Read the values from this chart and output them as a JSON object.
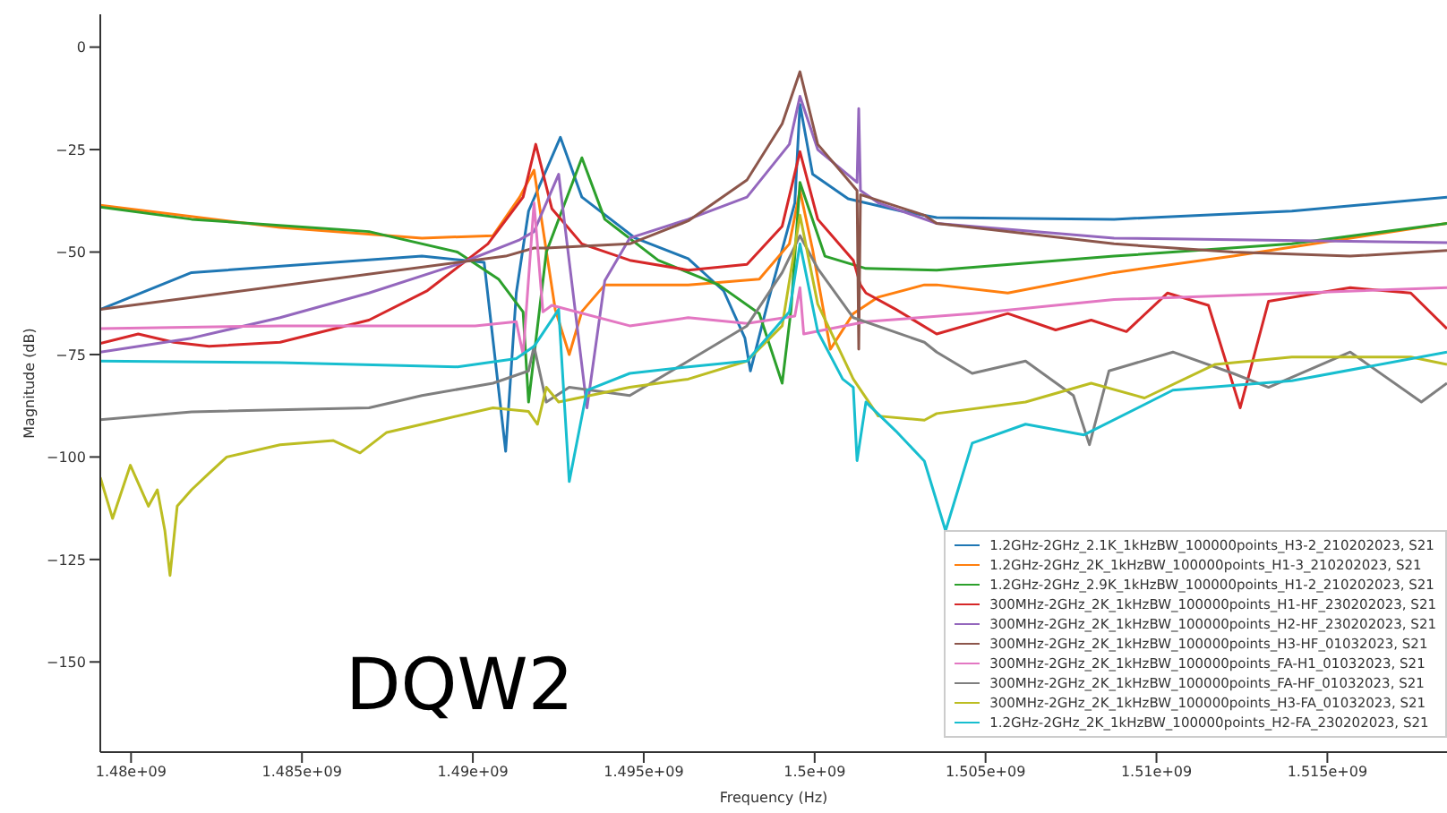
{
  "chart_data": {
    "type": "line",
    "xlabel": "Frequency (Hz)",
    "ylabel": "Magnitude (dB)",
    "annotations": [
      "DQW2"
    ],
    "xlim": [
      1479100000.0,
      1518500000.0
    ],
    "ylim": [
      -172,
      8
    ],
    "xticks": [
      {
        "value": 1480000000.0,
        "label": "1.48e+09"
      },
      {
        "value": 1485000000.0,
        "label": "1.485e+09"
      },
      {
        "value": 1490000000.0,
        "label": "1.49e+09"
      },
      {
        "value": 1495000000.0,
        "label": "1.495e+09"
      },
      {
        "value": 1500000000.0,
        "label": "1.5e+09"
      },
      {
        "value": 1505000000.0,
        "label": "1.505e+09"
      },
      {
        "value": 1510000000.0,
        "label": "1.51e+09"
      },
      {
        "value": 1515000000.0,
        "label": "1.515e+09"
      }
    ],
    "yticks": [
      0,
      {
        "value": -25,
        "label": "−25"
      },
      {
        "value": -50,
        "label": "−50"
      },
      {
        "value": -75,
        "label": "−75"
      },
      {
        "value": -100,
        "label": "−100"
      },
      {
        "value": -125,
        "label": "−125"
      },
      {
        "value": -150,
        "label": "−150"
      }
    ],
    "grid": false,
    "legend": "bottom right",
    "line_style": "solid",
    "series": [
      {
        "name": "1.2GHz-2GHz_2.1K_1kHzBW_100000points_H3-2_210202023, S21",
        "color": "#1f77b4",
        "x": [
          1479100000.0,
          1481770000.0,
          1488510000.0,
          1490330000.0,
          1490960000.0,
          1491270000.0,
          1491630000.0,
          1492560000.0,
          1493190000.0,
          1494750000.0,
          1496300000.0,
          1497340000.0,
          1497960000.0,
          1498120000.0,
          1498640000.0,
          1499420000.0,
          1499570000.0,
          1499940000.0,
          1500980000.0,
          1502530000.0,
          1503570000.0,
          1508760000.0,
          1513960000.0,
          1518500000.0
        ],
        "values": [
          -64,
          -55,
          -51,
          -52.5,
          -98.6,
          -60,
          -40,
          -22,
          -36.6,
          -46.6,
          -51.6,
          -59.5,
          -71,
          -79,
          -62,
          -38,
          -14,
          -31,
          -37,
          -40,
          -41.6,
          -42,
          -40,
          -36.6
        ]
      },
      {
        "name": "1.2GHz-2GHz_2K_1kHzBW_100000points_H1-3_210202023, S21",
        "color": "#ff7f0e",
        "x": [
          1479100000.0,
          1484360000.0,
          1488510000.0,
          1490590000.0,
          1491370000.0,
          1491790000.0,
          1492410000.0,
          1492820000.0,
          1493190000.0,
          1493860000.0,
          1496300000.0,
          1498380000.0,
          1499260000.0,
          1499570000.0,
          1499940000.0,
          1500460000.0,
          1501130000.0,
          1501860000.0,
          1503210000.0,
          1503570000.0,
          1505650000.0,
          1508760000.0,
          1512240000.0,
          1518500000.0
        ],
        "values": [
          -38.6,
          -44,
          -46.6,
          -46,
          -36.6,
          -30,
          -64,
          -75,
          -64.5,
          -58,
          -58,
          -56.6,
          -48,
          -35,
          -49.4,
          -73.7,
          -65,
          -61,
          -58,
          -58,
          -60,
          -55,
          -51,
          -43
        ]
      },
      {
        "name": "1.2GHz-2GHz_2.9K_1kHzBW_100000points_H1-2_210202023, S21",
        "color": "#2ca02c",
        "x": [
          1479100000.0,
          1481770000.0,
          1486960000.0,
          1489550000.0,
          1490750000.0,
          1491470000.0,
          1491630000.0,
          1492150000.0,
          1493190000.0,
          1493860000.0,
          1495420000.0,
          1497190000.0,
          1498380000.0,
          1499050000.0,
          1499310000.0,
          1499570000.0,
          1500300000.0,
          1501500000.0,
          1503570000.0,
          1508760000.0,
          1513960000.0,
          1518500000.0
        ],
        "values": [
          -39,
          -42,
          -45,
          -50,
          -56.6,
          -64.6,
          -86.6,
          -50,
          -27,
          -42,
          -52,
          -58,
          -65,
          -82,
          -64,
          -33,
          -51,
          -54,
          -54.4,
          -51,
          -48,
          -43
        ]
      },
      {
        "name": "300MHz-2GHz_2K_1kHzBW_100000points_H1-HF_230202023, S21",
        "color": "#d62728",
        "x": [
          1479100000.0,
          1480210000.0,
          1481250000.0,
          1482280000.0,
          1484360000.0,
          1486960000.0,
          1488670000.0,
          1490440000.0,
          1491470000.0,
          1491840000.0,
          1492310000.0,
          1493190000.0,
          1494590000.0,
          1496300000.0,
          1498020000.0,
          1499050000.0,
          1499570000.0,
          1500090000.0,
          1501130000.0,
          1501340000.0,
          1501500000.0,
          1502380000.0,
          1503570000.0,
          1505650000.0,
          1507050000.0,
          1508090000.0,
          1509120000.0,
          1510320000.0,
          1511520000.0,
          1512450000.0,
          1513280000.0,
          1515670000.0,
          1517440000.0,
          1518500000.0
        ],
        "values": [
          -72.3,
          -70,
          -72,
          -73,
          -72,
          -66.6,
          -59.4,
          -48,
          -36.6,
          -23.7,
          -39.4,
          -48,
          -52,
          -54.4,
          -53,
          -43.7,
          -25.5,
          -42,
          -52,
          -58,
          -60,
          -64,
          -70,
          -65,
          -69,
          -66.6,
          -69.4,
          -60,
          -63,
          -88,
          -62,
          -58.7,
          -60,
          -68.7
        ]
      },
      {
        "name": "300MHz-2GHz_2K_1kHzBW_100000points_H2-HF_230202023, S21",
        "color": "#9467bd",
        "x": [
          1479100000.0,
          1481770000.0,
          1484360000.0,
          1486960000.0,
          1489550000.0,
          1491370000.0,
          1491790000.0,
          1492510000.0,
          1493340000.0,
          1493860000.0,
          1494590000.0,
          1496300000.0,
          1498020000.0,
          1499260000.0,
          1499570000.0,
          1500090000.0,
          1501240000.0,
          1501290000.0,
          1501340000.0,
          1501860000.0,
          1503570000.0,
          1508760000.0,
          1518500000.0
        ],
        "values": [
          -74.4,
          -71,
          -66,
          -60,
          -53,
          -47,
          -45,
          -31,
          -88,
          -57,
          -46.6,
          -42,
          -36.6,
          -23.7,
          -12,
          -25,
          -33,
          -15,
          -35,
          -38,
          -43,
          -46.6,
          -47.7
        ]
      },
      {
        "name": "300MHz-2GHz_2K_1kHzBW_100000points_H3-HF_01032023, S21",
        "color": "#8c564b",
        "x": [
          1479100000.0,
          1490960000.0,
          1491790000.0,
          1492150000.0,
          1494590000.0,
          1496300000.0,
          1498020000.0,
          1499050000.0,
          1499570000.0,
          1500090000.0,
          1501240000.0,
          1501290000.0,
          1501340000.0,
          1503210000.0,
          1503570000.0,
          1508760000.0,
          1512240000.0,
          1515670000.0,
          1518500000.0
        ],
        "values": [
          -64,
          -51,
          -49,
          -49,
          -48,
          -42.4,
          -32.4,
          -18.7,
          -6,
          -23.7,
          -35,
          -73.7,
          -36,
          -41,
          -43,
          -48,
          -50,
          -51,
          -49.6
        ]
      },
      {
        "name": "300MHz-2GHz_2K_1kHzBW_100000points_FA-H1_01032023, S21",
        "color": "#e377c2",
        "x": [
          1479100000.0,
          1484360000.0,
          1490070000.0,
          1491270000.0,
          1491470000.0,
          1491790000.0,
          1492050000.0,
          1492310000.0,
          1494590000.0,
          1496300000.0,
          1498020000.0,
          1499420000.0,
          1499570000.0,
          1499680000.0,
          1501500000.0,
          1504610000.0,
          1508760000.0,
          1518500000.0
        ],
        "values": [
          -68.7,
          -68,
          -68,
          -67,
          -75,
          -38,
          -64.6,
          -63,
          -68,
          -66,
          -67.4,
          -65.6,
          -58.7,
          -70,
          -67,
          -65,
          -61.6,
          -58.7
        ]
      },
      {
        "name": "300MHz-2GHz_2K_1kHzBW_100000points_FA-HF_01032023, S21",
        "color": "#7f7f7f",
        "x": [
          1479100000.0,
          1481770000.0,
          1486960000.0,
          1488510000.0,
          1490590000.0,
          1491630000.0,
          1491790000.0,
          1492150000.0,
          1492820000.0,
          1494590000.0,
          1496300000.0,
          1498020000.0,
          1499050000.0,
          1499570000.0,
          1500090000.0,
          1501130000.0,
          1503210000.0,
          1503570000.0,
          1504610000.0,
          1506170000.0,
          1507570000.0,
          1508040000.0,
          1508610000.0,
          1510480000.0,
          1512240000.0,
          1513280000.0,
          1515670000.0,
          1517750000.0,
          1518500000.0
        ],
        "values": [
          -90.9,
          -89,
          -88,
          -85,
          -82,
          -79,
          -73,
          -86.6,
          -83,
          -85,
          -76.6,
          -68,
          -55,
          -46,
          -54,
          -66,
          -72,
          -74.4,
          -79.6,
          -76.6,
          -85,
          -97,
          -79,
          -74.4,
          -79.6,
          -83,
          -74.4,
          -86.6,
          -82
        ]
      },
      {
        "name": "300MHz-2GHz_2K_1kHzBW_100000points_H3-FA_01032023, S21",
        "color": "#bcbd22",
        "x": [
          1479100000.0,
          1479460000.0,
          1479980000.0,
          1480510000.0,
          1480770000.0,
          1480990000.0,
          1481140000.0,
          1481350000.0,
          1481770000.0,
          1482280000.0,
          1482800000.0,
          1484360000.0,
          1485920000.0,
          1486700000.0,
          1487480000.0,
          1489030000.0,
          1490590000.0,
          1491630000.0,
          1491890000.0,
          1492150000.0,
          1492510000.0,
          1494590000.0,
          1496300000.0,
          1498020000.0,
          1499050000.0,
          1499570000.0,
          1500090000.0,
          1501130000.0,
          1501860000.0,
          1503210000.0,
          1503570000.0,
          1506170000.0,
          1508090000.0,
          1509650000.0,
          1511720000.0,
          1513960000.0,
          1517440000.0,
          1518500000.0
        ],
        "values": [
          -105,
          -115,
          -102,
          -112,
          -108,
          -118,
          -128.9,
          -112,
          -108,
          -104,
          -100,
          -97,
          -96,
          -99,
          -94,
          -91,
          -88,
          -88.9,
          -92,
          -83,
          -86.6,
          -83,
          -81,
          -76.6,
          -68,
          -41,
          -62.7,
          -81,
          -90,
          -91,
          -89.4,
          -86.6,
          -82,
          -85.6,
          -77.4,
          -75.6,
          -75.6,
          -77.4
        ]
      },
      {
        "name": "1.2GHz-2GHz_2K_1kHzBW_100000points_H2-FA_230202023, S21",
        "color": "#17becf",
        "x": [
          1479100000.0,
          1484360000.0,
          1489550000.0,
          1491270000.0,
          1491790000.0,
          1492510000.0,
          1492820000.0,
          1493340000.0,
          1494590000.0,
          1496300000.0,
          1498020000.0,
          1499260000.0,
          1499570000.0,
          1500090000.0,
          1500820000.0,
          1501130000.0,
          1501240000.0,
          1501500000.0,
          1502380000.0,
          1503210000.0,
          1503830000.0,
          1504610000.0,
          1506170000.0,
          1507880000.0,
          1510480000.0,
          1513960000.0,
          1518500000.0
        ],
        "values": [
          -76.6,
          -77,
          -78,
          -76,
          -73,
          -64,
          -106,
          -83.7,
          -79.6,
          -78,
          -76.6,
          -64.6,
          -48,
          -69.4,
          -81,
          -83,
          -100.9,
          -86.6,
          -93.7,
          -101,
          -118,
          -96.6,
          -92,
          -94.6,
          -83.7,
          -81.4,
          -74.4
        ]
      }
    ]
  }
}
